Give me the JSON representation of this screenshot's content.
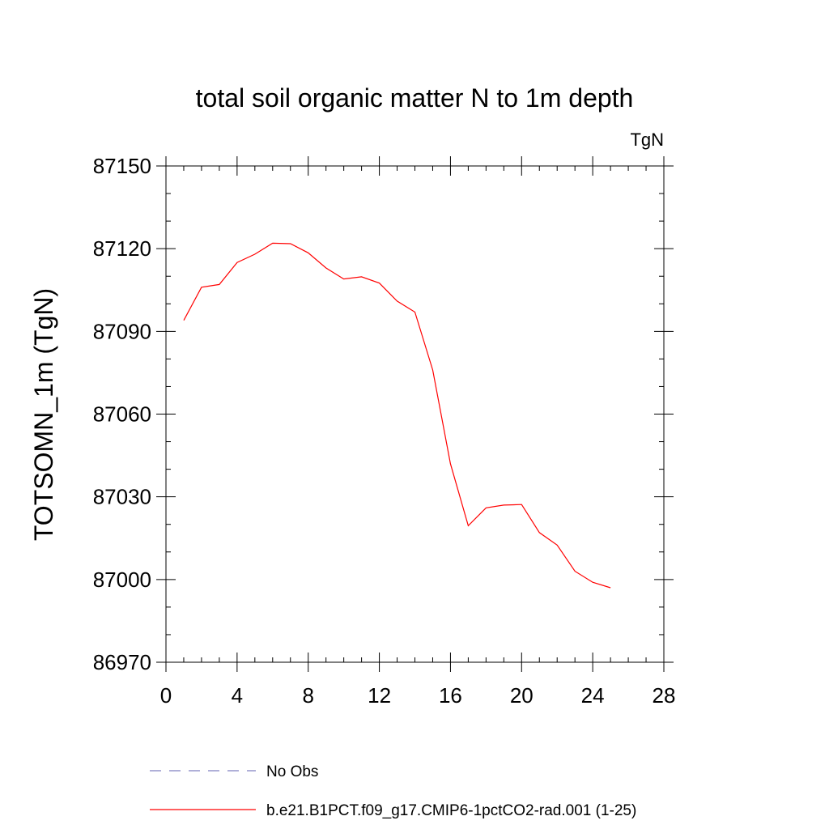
{
  "chart_data": {
    "type": "line",
    "title": "total soil organic matter N to 1m depth",
    "units_label": "TgN",
    "xlabel": "",
    "ylabel": "TOTSOMN_1m  (TgN)",
    "xlim": [
      0,
      28
    ],
    "ylim": [
      86970,
      87150
    ],
    "xticks": [
      0,
      4,
      8,
      12,
      16,
      20,
      24,
      28
    ],
    "yticks": [
      86970,
      87000,
      87030,
      87060,
      87090,
      87120,
      87150
    ],
    "grid": false,
    "legend_position": "bottom",
    "series": [
      {
        "name": "No Obs",
        "color": "#8080c0",
        "dash": "dashed",
        "x": [],
        "y": []
      },
      {
        "name": "b.e21.B1PCT.f09_g17.CMIP6-1pctCO2-rad.001 (1-25)",
        "color": "#ff0000",
        "dash": "solid",
        "x": [
          1,
          2,
          3,
          4,
          5,
          6,
          7,
          8,
          9,
          10,
          11,
          12,
          13,
          14,
          15,
          16,
          17,
          18,
          19,
          20,
          21,
          22,
          23,
          24,
          25
        ],
        "y": [
          87094,
          87106,
          87107,
          87115,
          87118,
          87122,
          87121.8,
          87118.5,
          87113,
          87109,
          87109.8,
          87107.5,
          87101,
          87097,
          87076,
          87042,
          87019.5,
          87026,
          87027,
          87027.2,
          87017,
          87012.5,
          87003,
          86999,
          86997
        ]
      }
    ]
  }
}
